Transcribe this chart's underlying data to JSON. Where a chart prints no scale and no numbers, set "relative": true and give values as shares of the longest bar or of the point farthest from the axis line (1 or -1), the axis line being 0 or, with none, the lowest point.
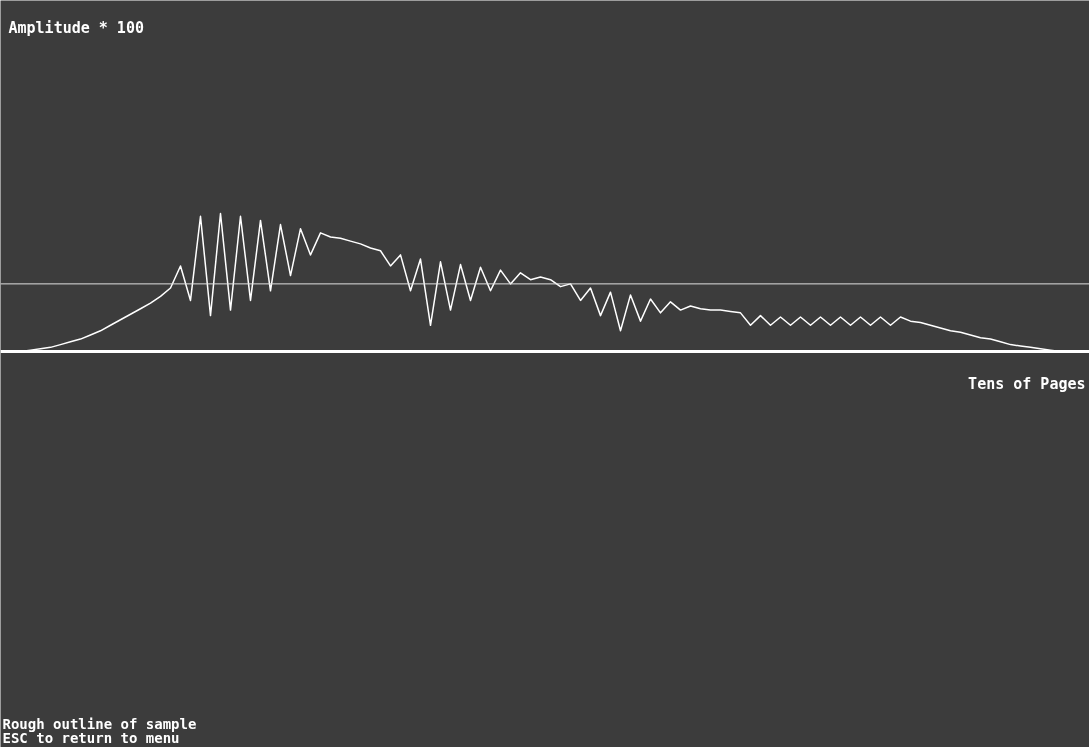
{
  "chart_data": {
    "type": "line",
    "relative": true,
    "xlabel": "Tens of Pages",
    "annotations": [
      "Amplitude * 100",
      "Rough outline of sample",
      "ESC to return to menu"
    ],
    "categories": [
      null,
      null,
      null,
      null,
      null,
      null,
      null,
      null,
      null,
      null,
      null,
      null,
      null,
      null,
      null,
      null,
      null,
      null,
      null,
      null,
      null,
      null,
      null,
      null,
      null,
      null,
      null,
      null,
      null,
      null,
      null,
      null,
      null,
      null,
      null,
      null,
      null,
      null,
      null,
      null,
      null,
      null,
      null,
      null,
      null,
      null,
      null,
      null,
      null,
      null,
      null,
      null,
      null,
      null,
      null,
      null,
      null,
      null,
      null,
      null,
      null,
      null,
      null,
      null,
      null,
      null,
      null,
      null,
      null,
      null,
      null,
      null,
      null,
      null,
      null,
      null,
      null,
      null,
      null,
      null,
      null,
      null,
      null,
      null,
      null,
      null,
      null,
      null,
      null,
      null,
      null,
      null,
      null,
      null,
      null,
      null,
      null,
      null,
      null,
      null,
      null,
      null,
      null,
      null,
      null
    ],
    "series": [
      {
        "color": "#ffffff",
        "values": [
          0,
          0.01,
          0.02,
          0.03,
          0.05,
          0.07,
          0.09,
          0.12,
          0.15,
          0.19,
          0.23,
          0.27,
          0.31,
          0.35,
          0.4,
          0.46,
          0.62,
          0.37,
          0.98,
          0.26,
          1.0,
          0.3,
          0.98,
          0.37,
          0.95,
          0.44,
          0.92,
          0.55,
          0.89,
          0.7,
          0.86,
          0.83,
          0.82,
          0.8,
          0.78,
          0.75,
          0.73,
          0.62,
          0.7,
          0.44,
          0.67,
          0.19,
          0.65,
          0.3,
          0.63,
          0.37,
          0.61,
          0.44,
          0.59,
          0.49,
          0.57,
          0.52,
          0.54,
          0.52,
          0.47,
          0.49,
          0.37,
          0.46,
          0.26,
          0.43,
          0.15,
          0.41,
          0.22,
          0.38,
          0.28,
          0.36,
          0.3,
          0.33,
          0.31,
          0.3,
          0.3,
          0.29,
          0.28,
          0.19,
          0.26,
          0.19,
          0.25,
          0.19,
          0.25,
          0.19,
          0.25,
          0.19,
          0.25,
          0.19,
          0.25,
          0.19,
          0.25,
          0.19,
          0.25,
          0.22,
          0.21,
          0.19,
          0.17,
          0.15,
          0.14,
          0.12,
          0.1,
          0.09,
          0.07,
          0.05,
          0.04,
          0.03,
          0.02,
          0.01,
          0
        ]
      }
    ],
    "ref_lines": [
      {
        "axis": "y",
        "value": 0.49,
        "color": "#e0e0e0"
      }
    ]
  }
}
